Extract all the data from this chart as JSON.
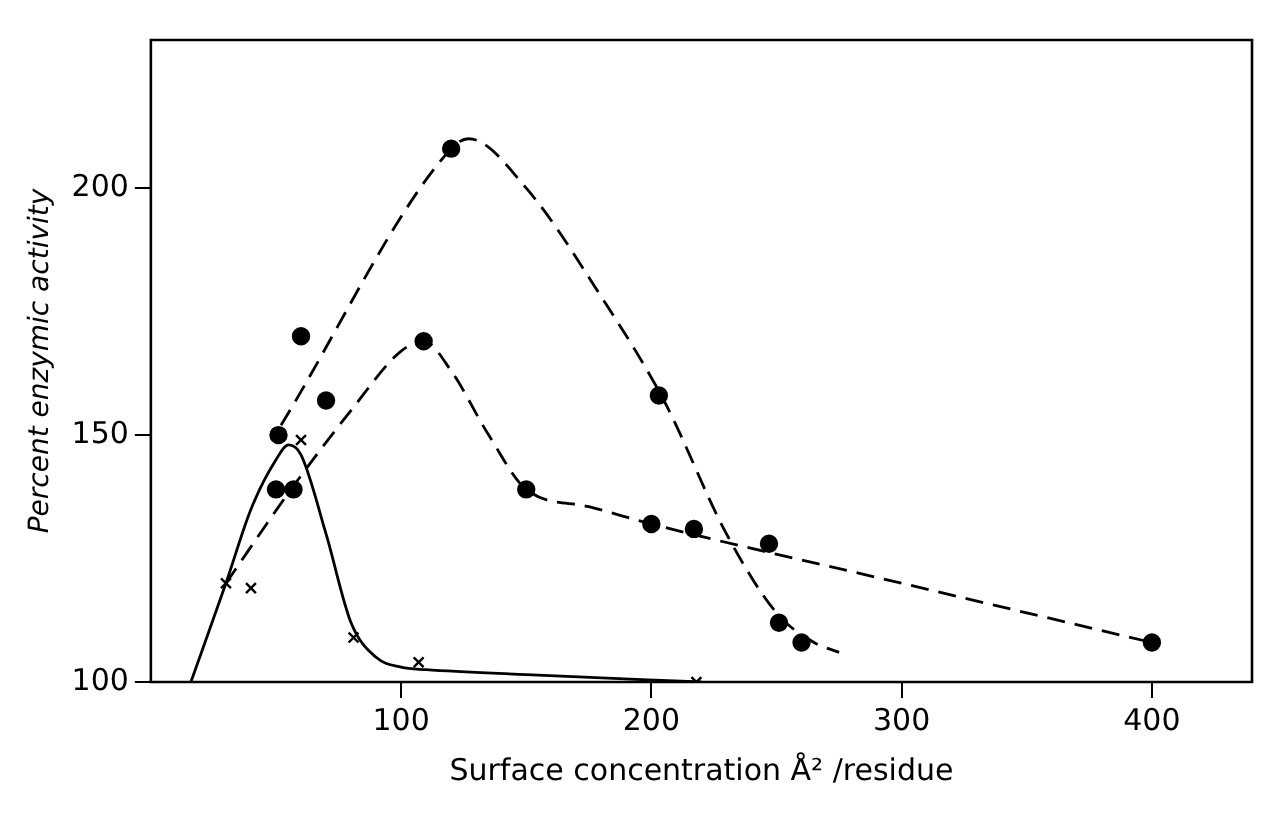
{
  "chart_data": {
    "type": "scatter",
    "xlabel": "Surface concentration Å² /residue",
    "ylabel": "Percent enzymic activity",
    "xlim": [
      0,
      440
    ],
    "xticks": [
      100,
      200,
      300,
      400
    ],
    "ylim": [
      100,
      230
    ],
    "yticks": [
      100,
      150,
      200
    ],
    "grid": false,
    "legend": false,
    "series": [
      {
        "type": "scatter",
        "marker": "cross",
        "color": "#000000",
        "x": [
          30,
          40,
          60,
          81,
          107,
          218
        ],
        "values": [
          120,
          119,
          149,
          109,
          104,
          100
        ]
      },
      {
        "type": "scatter",
        "marker": "circle",
        "color": "#000000",
        "x": [
          50,
          57,
          109,
          150,
          200,
          400
        ],
        "values": [
          139,
          139,
          169,
          139,
          132,
          108
        ]
      },
      {
        "type": "scatter",
        "marker": "circle",
        "color": "#000000",
        "x": [
          51,
          60,
          70,
          120,
          203,
          217,
          247,
          251,
          260
        ],
        "values": [
          150,
          170,
          157,
          208,
          158,
          131,
          128,
          112,
          108
        ]
      },
      {
        "type": "line",
        "marker": "none",
        "line_style": "solid",
        "color": "#000000",
        "x": [
          16,
          30,
          40,
          50,
          55,
          60,
          70,
          80,
          90,
          100,
          110,
          150,
          220
        ],
        "values": [
          100,
          120,
          135,
          145,
          148,
          146,
          130,
          112,
          105,
          103,
          102.5,
          101.5,
          100
        ]
      },
      {
        "type": "line",
        "marker": "none",
        "line_style": "dashed",
        "color": "#000000",
        "x": [
          30,
          56,
          80,
          100,
          109,
          120,
          135,
          150,
          175,
          200,
          300,
          400
        ],
        "values": [
          120,
          139,
          155,
          167,
          169,
          163,
          150,
          139,
          135.5,
          132,
          120,
          108
        ]
      },
      {
        "type": "line",
        "marker": "none",
        "line_style": "dashed",
        "color": "#000000",
        "x": [
          52,
          120,
          127,
          150,
          180,
          205,
          230,
          250,
          265,
          275
        ],
        "values": [
          152,
          208,
          210,
          200,
          178,
          157,
          130,
          114,
          108,
          106
        ]
      }
    ]
  }
}
